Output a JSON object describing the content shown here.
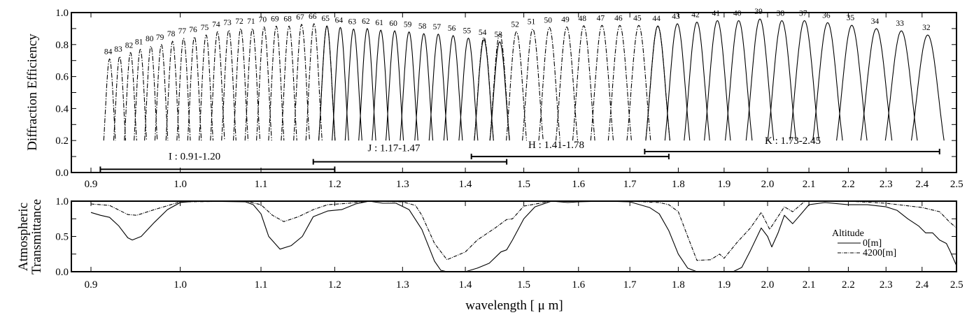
{
  "chart_data": [
    {
      "type": "line",
      "title": "",
      "ylabel": "Diffraction Efficiency",
      "xlabel": "",
      "xscale": "log",
      "xlim": [
        0.88,
        2.5
      ],
      "ylim": [
        0.0,
        1.0
      ],
      "xticks": [
        "0.9",
        "1.0",
        "1.1",
        "1.2",
        "1.3",
        "1.4",
        "1.5",
        "1.6",
        "1.7",
        "1.8",
        "1.9",
        "2.0",
        "2.1",
        "2.2",
        "2.3",
        "2.4",
        "2.5"
      ],
      "yticks": [
        "0.0",
        "0.2",
        "0.4",
        "0.6",
        "0.8",
        "1.0"
      ],
      "curve_floor": 0.2,
      "bands": [
        {
          "name": "I",
          "label": "I : 0.91-1.20",
          "range": [
            0.91,
            1.2
          ],
          "bar_level": 0.02,
          "style": "dash-dot",
          "orders": [
            {
              "m": "84",
              "um": 0.92,
              "eff": 0.71
            },
            {
              "m": "83",
              "um": 0.931,
              "eff": 0.725
            },
            {
              "m": "82",
              "um": 0.943,
              "eff": 0.75
            },
            {
              "m": "81",
              "um": 0.954,
              "eff": 0.77
            },
            {
              "m": "80",
              "um": 0.966,
              "eff": 0.79
            },
            {
              "m": "79",
              "um": 0.978,
              "eff": 0.8
            },
            {
              "m": "78",
              "um": 0.991,
              "eff": 0.82
            },
            {
              "m": "77",
              "um": 1.004,
              "eff": 0.838
            },
            {
              "m": "76",
              "um": 1.017,
              "eff": 0.848
            },
            {
              "m": "75",
              "um": 1.031,
              "eff": 0.86
            },
            {
              "m": "74",
              "um": 1.045,
              "eff": 0.88
            },
            {
              "m": "73",
              "um": 1.059,
              "eff": 0.89
            },
            {
              "m": "72",
              "um": 1.074,
              "eff": 0.9
            },
            {
              "m": "71",
              "um": 1.089,
              "eff": 0.9
            },
            {
              "m": "70",
              "um": 1.104,
              "eff": 0.91
            },
            {
              "m": "69",
              "um": 1.12,
              "eff": 0.915
            },
            {
              "m": "68",
              "um": 1.137,
              "eff": 0.915
            },
            {
              "m": "67",
              "um": 1.154,
              "eff": 0.926
            },
            {
              "m": "66",
              "um": 1.171,
              "eff": 0.93
            },
            {
              "m": "65",
              "um": 1.189,
              "eff": 0.916
            }
          ]
        },
        {
          "name": "J",
          "label": "J : 1.17-1.47",
          "range": [
            1.17,
            1.47
          ],
          "bar_level": 0.067,
          "style": "solid",
          "orders": [
            {
              "m": "65",
              "um": 1.189,
              "eff": 0.916
            },
            {
              "m": "64",
              "um": 1.208,
              "eff": 0.907
            },
            {
              "m": "63",
              "um": 1.227,
              "eff": 0.897
            },
            {
              "m": "62",
              "um": 1.247,
              "eff": 0.9
            },
            {
              "m": "61",
              "um": 1.267,
              "eff": 0.89
            },
            {
              "m": "60",
              "um": 1.288,
              "eff": 0.886
            },
            {
              "m": "59",
              "um": 1.31,
              "eff": 0.879
            },
            {
              "m": "58",
              "um": 1.333,
              "eff": 0.868
            },
            {
              "m": "57",
              "um": 1.356,
              "eff": 0.865
            },
            {
              "m": "56",
              "um": 1.38,
              "eff": 0.856
            },
            {
              "m": "55",
              "um": 1.405,
              "eff": 0.84
            },
            {
              "m": "54",
              "um": 1.431,
              "eff": 0.83
            },
            {
              "m": "53",
              "um": 1.458,
              "eff": 0.817
            }
          ]
        },
        {
          "name": "H",
          "label": "H : 1.41-1.78",
          "range": [
            1.41,
            1.78
          ],
          "bar_level": 0.1,
          "style": "dash-dot",
          "orders": [
            {
              "m": "54",
              "um": 1.431,
              "eff": 0.845
            },
            {
              "m": "53",
              "um": 1.458,
              "eff": 0.868
            },
            {
              "m": "52",
              "um": 1.487,
              "eff": 0.88
            },
            {
              "m": "51",
              "um": 1.516,
              "eff": 0.897
            },
            {
              "m": "50",
              "um": 1.546,
              "eff": 0.907
            },
            {
              "m": "49",
              "um": 1.578,
              "eff": 0.91
            },
            {
              "m": "48",
              "um": 1.61,
              "eff": 0.918
            },
            {
              "m": "47",
              "um": 1.645,
              "eff": 0.92
            },
            {
              "m": "46",
              "um": 1.68,
              "eff": 0.92
            },
            {
              "m": "45",
              "um": 1.718,
              "eff": 0.92
            },
            {
              "m": "44",
              "um": 1.757,
              "eff": 0.916
            }
          ]
        },
        {
          "name": "K",
          "label": "K : 1.73-2.45",
          "range": [
            1.73,
            2.45
          ],
          "bar_level": 0.131,
          "style": "solid",
          "orders": [
            {
              "m": "44",
              "um": 1.757,
              "eff": 0.916
            },
            {
              "m": "43",
              "um": 1.798,
              "eff": 0.93
            },
            {
              "m": "42",
              "um": 1.84,
              "eff": 0.94
            },
            {
              "m": "41",
              "um": 1.885,
              "eff": 0.95
            },
            {
              "m": "40",
              "um": 1.933,
              "eff": 0.95
            },
            {
              "m": "39",
              "um": 1.982,
              "eff": 0.96
            },
            {
              "m": "38",
              "um": 2.034,
              "eff": 0.95
            },
            {
              "m": "37",
              "um": 2.089,
              "eff": 0.95
            },
            {
              "m": "36",
              "um": 2.147,
              "eff": 0.937
            },
            {
              "m": "35",
              "um": 2.209,
              "eff": 0.921
            },
            {
              "m": "34",
              "um": 2.274,
              "eff": 0.9
            },
            {
              "m": "33",
              "um": 2.342,
              "eff": 0.886
            },
            {
              "m": "32",
              "um": 2.416,
              "eff": 0.86
            }
          ]
        }
      ]
    },
    {
      "type": "line",
      "ylabel_lines": [
        "Atmospheric",
        "Transmittance"
      ],
      "xlabel": "wavelength [ μ m]",
      "xscale": "log",
      "xlim": [
        0.88,
        2.5
      ],
      "ylim": [
        0.0,
        1.0
      ],
      "xticks": [
        "0.9",
        "1.0",
        "1.1",
        "1.2",
        "1.3",
        "1.4",
        "1.5",
        "1.6",
        "1.7",
        "1.8",
        "1.9",
        "2.0",
        "2.1",
        "2.2",
        "2.3",
        "2.4",
        "2.5"
      ],
      "yticks": [
        "0.0",
        "0.5",
        "1.0"
      ],
      "legend": {
        "title": "Altitude",
        "placement": "right"
      },
      "series": [
        {
          "name": "0[m]",
          "style": "solid",
          "x": [
            0.9,
            0.91,
            0.92,
            0.93,
            0.94,
            0.945,
            0.955,
            0.97,
            0.985,
            1.0,
            1.02,
            1.08,
            1.09,
            1.1,
            1.11,
            1.125,
            1.14,
            1.155,
            1.17,
            1.19,
            1.21,
            1.23,
            1.25,
            1.27,
            1.29,
            1.31,
            1.33,
            1.35,
            1.36,
            1.37,
            1.4,
            1.42,
            1.44,
            1.46,
            1.47,
            1.48,
            1.5,
            1.52,
            1.55,
            1.58,
            1.6,
            1.65,
            1.7,
            1.74,
            1.76,
            1.78,
            1.8,
            1.82,
            1.84,
            1.92,
            1.94,
            1.96,
            1.985,
            2.0,
            2.01,
            2.025,
            2.04,
            2.06,
            2.075,
            2.1,
            2.14,
            2.2,
            2.25,
            2.3,
            2.33,
            2.36,
            2.39,
            2.41,
            2.43,
            2.45,
            2.47,
            2.48,
            2.5
          ],
          "y": [
            0.84,
            0.8,
            0.77,
            0.65,
            0.48,
            0.45,
            0.5,
            0.7,
            0.88,
            0.98,
            1.0,
            0.99,
            0.95,
            0.82,
            0.5,
            0.32,
            0.37,
            0.5,
            0.78,
            0.86,
            0.88,
            0.96,
            1.0,
            0.97,
            0.97,
            0.88,
            0.6,
            0.15,
            0.02,
            0.0,
            0.0,
            0.05,
            0.12,
            0.28,
            0.31,
            0.45,
            0.75,
            0.92,
            1.0,
            0.98,
            0.99,
            1.0,
            0.99,
            0.91,
            0.82,
            0.58,
            0.25,
            0.05,
            0.0,
            0.0,
            0.06,
            0.3,
            0.62,
            0.5,
            0.35,
            0.55,
            0.8,
            0.68,
            0.78,
            0.95,
            0.98,
            0.95,
            0.95,
            0.92,
            0.87,
            0.75,
            0.65,
            0.55,
            0.55,
            0.45,
            0.4,
            0.3,
            0.08
          ]
        },
        {
          "name": "4200[m]",
          "style": "dash-dot",
          "x": [
            0.9,
            0.92,
            0.94,
            0.95,
            0.97,
            1.0,
            1.08,
            1.1,
            1.115,
            1.13,
            1.15,
            1.17,
            1.19,
            1.22,
            1.25,
            1.3,
            1.32,
            1.33,
            1.35,
            1.37,
            1.4,
            1.42,
            1.45,
            1.47,
            1.48,
            1.5,
            1.55,
            1.7,
            1.76,
            1.78,
            1.8,
            1.82,
            1.84,
            1.87,
            1.89,
            1.9,
            1.93,
            1.96,
            1.985,
            2.005,
            2.04,
            2.06,
            2.09,
            2.2,
            2.3,
            2.4,
            2.45,
            2.48,
            2.5
          ],
          "y": [
            0.96,
            0.94,
            0.81,
            0.8,
            0.88,
            0.99,
            1.0,
            0.95,
            0.8,
            0.71,
            0.78,
            0.88,
            0.95,
            0.97,
            1.0,
            0.99,
            0.94,
            0.8,
            0.4,
            0.17,
            0.28,
            0.45,
            0.62,
            0.74,
            0.75,
            0.93,
            1.0,
            1.0,
            0.98,
            0.95,
            0.85,
            0.5,
            0.16,
            0.17,
            0.25,
            0.19,
            0.42,
            0.62,
            0.84,
            0.6,
            0.92,
            0.85,
            1.0,
            1.0,
            0.97,
            0.91,
            0.85,
            0.7,
            0.62
          ]
        }
      ]
    }
  ]
}
